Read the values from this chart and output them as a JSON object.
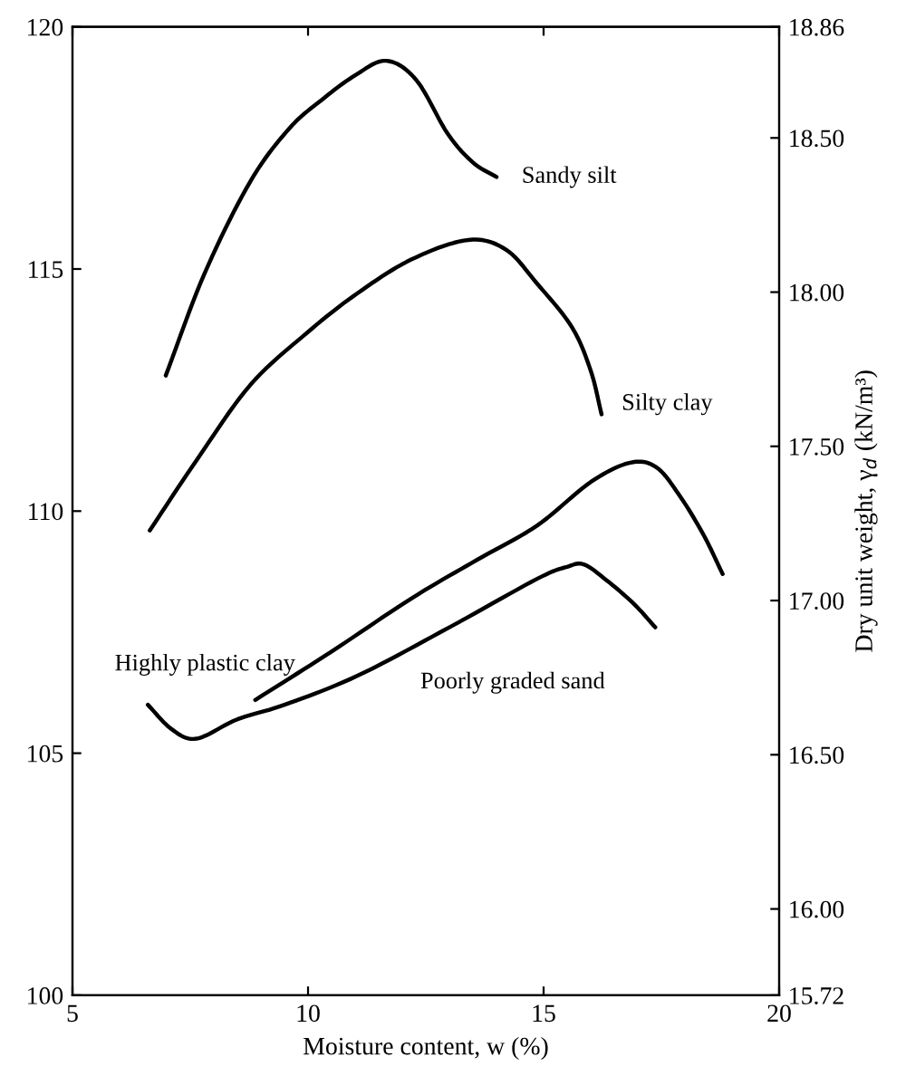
{
  "chart_data": {
    "type": "line",
    "xlabel": "Moisture content, w (%)",
    "y2label": "Dry unit weight, γ$_{d}$ (kN/m³)",
    "xlim": [
      5,
      20
    ],
    "xticks": [
      5,
      10,
      15,
      20
    ],
    "ylim": [
      100,
      120
    ],
    "yticks": [
      100,
      105,
      110,
      115,
      120
    ],
    "y2lim": [
      15.72,
      18.86
    ],
    "y2ticks": [
      {
        "value": 15.72,
        "label": "15.72"
      },
      {
        "value": 16.0,
        "label": "16.00"
      },
      {
        "value": 16.5,
        "label": "16.50"
      },
      {
        "value": 17.0,
        "label": "17.00"
      },
      {
        "value": 17.5,
        "label": "17.50"
      },
      {
        "value": 18.0,
        "label": "18.00"
      },
      {
        "value": 18.5,
        "label": "18.50"
      },
      {
        "value": 18.86,
        "label": "18.86"
      }
    ],
    "grid": false,
    "legend": false,
    "marker": "none",
    "line_style": "solid",
    "series": [
      {
        "name": "Sandy silt",
        "color": "#000000",
        "x": [
          6.98,
          7.8,
          8.77,
          9.6,
          10.3,
          11.0,
          11.66,
          12.3,
          12.96,
          13.5,
          14.0
        ],
        "values": [
          112.8,
          114.9,
          116.8,
          117.9,
          118.5,
          119.0,
          119.3,
          118.9,
          117.8,
          117.2,
          116.9
        ]
      },
      {
        "name": "Silty clay",
        "color": "#000000",
        "x": [
          6.64,
          7.6,
          8.77,
          10.0,
          11.05,
          12.2,
          13.4,
          14.2,
          14.86,
          15.6,
          16.0,
          16.23
        ],
        "values": [
          109.6,
          111.0,
          112.6,
          113.7,
          114.5,
          115.2,
          115.6,
          115.4,
          114.7,
          113.8,
          112.9,
          112.0
        ]
      },
      {
        "name": "Highly plastic clay",
        "color": "#000000",
        "x": [
          8.88,
          10.5,
          12.2,
          13.6,
          14.86,
          16.0,
          16.84,
          17.4,
          17.9,
          18.4,
          18.8
        ],
        "values": [
          106.1,
          107.1,
          108.2,
          109.0,
          109.7,
          110.6,
          111.0,
          110.9,
          110.3,
          109.5,
          108.7
        ]
      },
      {
        "name": "Poorly graded sand",
        "color": "#000000",
        "x": [
          6.6,
          7.1,
          7.63,
          8.5,
          9.5,
          11.05,
          13.0,
          14.86,
          15.5,
          15.85,
          16.3,
          16.9,
          17.37
        ],
        "values": [
          106.0,
          105.5,
          105.3,
          105.7,
          106.0,
          106.6,
          107.6,
          108.6,
          108.85,
          108.9,
          108.6,
          108.1,
          107.6
        ]
      }
    ]
  }
}
